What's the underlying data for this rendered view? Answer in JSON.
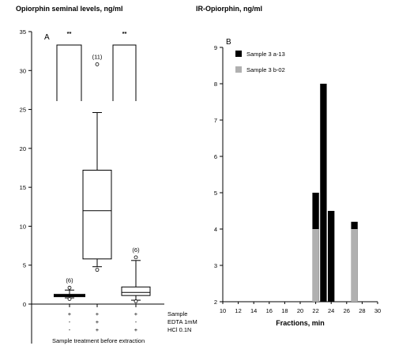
{
  "chart_data": [
    {
      "type": "box",
      "panel_label": "A",
      "title": "Opiorphin seminal levels, ng/ml",
      "ylim": [
        0,
        35
      ],
      "yticks": [
        0,
        5,
        10,
        15,
        20,
        25,
        30,
        35
      ],
      "grid": false,
      "xlabel": "Sample treatment before extraction",
      "condition_rows": [
        {
          "label": "Sample",
          "signs": [
            "+",
            "+",
            "+"
          ]
        },
        {
          "label": "EDTA 1mM",
          "signs": [
            "-",
            "+",
            "-"
          ]
        },
        {
          "label": "HCl 0.1N",
          "signs": [
            "-",
            "+",
            "+"
          ]
        }
      ],
      "boxes": [
        {
          "min": 0.8,
          "q1": 1.0,
          "median": 1.1,
          "q3": 1.2,
          "max": 1.8,
          "outliers": [
            0.65,
            2.1
          ],
          "n_label": "(6)"
        },
        {
          "min": 4.8,
          "q1": 5.8,
          "median": 12.0,
          "q3": 17.2,
          "max": 24.6,
          "outliers": [
            4.4,
            30.8
          ],
          "n_label": "(11)"
        },
        {
          "min": 0.5,
          "q1": 1.1,
          "median": 1.5,
          "q3": 2.2,
          "max": 5.6,
          "outliers": [
            0.35,
            6.0
          ],
          "n_label": "(6)"
        }
      ],
      "significance": [
        {
          "pair": [
            0,
            1
          ],
          "label": "**"
        },
        {
          "pair": [
            1,
            2
          ],
          "label": "**"
        }
      ]
    },
    {
      "type": "bar",
      "panel_label": "B",
      "title": "IR-Opiorphin, ng/ml",
      "xlabel": "Fractions, min",
      "xlim": [
        10,
        30
      ],
      "xticks": [
        10,
        12,
        14,
        16,
        18,
        20,
        22,
        24,
        26,
        28,
        30
      ],
      "ylim": [
        2,
        9
      ],
      "yticks": [
        2,
        3,
        4,
        5,
        6,
        7,
        8,
        9
      ],
      "grid": false,
      "legend_position": "top-left",
      "series": [
        {
          "name": "Sample 3 a-13",
          "color": "#000000",
          "points": [
            {
              "x": 22,
              "y": 5.0
            },
            {
              "x": 23,
              "y": 8.0
            },
            {
              "x": 24,
              "y": 4.5
            },
            {
              "x": 27,
              "y": 4.2
            }
          ]
        },
        {
          "name": "Sample 3 b-02",
          "color": "#b0b0b0",
          "points": [
            {
              "x": 22,
              "y": 4.0
            },
            {
              "x": 27,
              "y": 4.0
            }
          ]
        }
      ]
    }
  ]
}
